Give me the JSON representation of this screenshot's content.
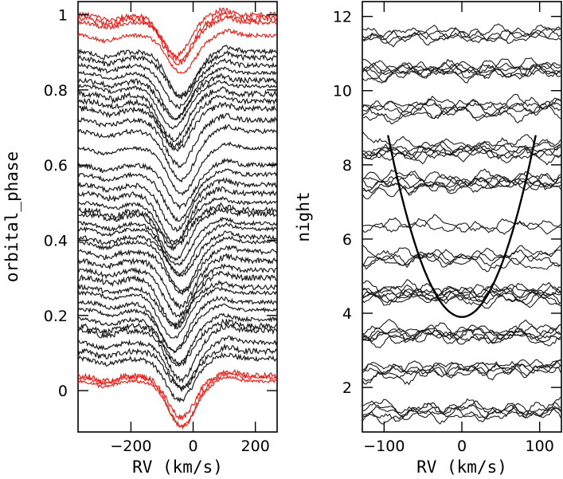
{
  "chart_data": [
    {
      "type": "line",
      "xlabel": "RV (km/s)",
      "ylabel": "orbital_phase",
      "xlim": [
        -370,
        270
      ],
      "ylim": [
        -0.11,
        1.035
      ],
      "xticks": [
        -200,
        0,
        200
      ],
      "xtick_labels": [
        "−200",
        "0",
        "200"
      ],
      "yticks": [
        0,
        0.2,
        0.4,
        0.6,
        0.8,
        1
      ],
      "ytick_labels": [
        "0",
        "0.2",
        "0.4",
        "0.6",
        "0.8",
        "1"
      ],
      "line_center_rv": -50,
      "line_halfwidth_rv": 120,
      "highlight_color": "#e8231d",
      "series_color": "#1a1a1a",
      "black_phases": [
        0.085,
        0.105,
        0.128,
        0.16,
        0.172,
        0.19,
        0.215,
        0.235,
        0.26,
        0.275,
        0.3,
        0.32,
        0.345,
        0.37,
        0.395,
        0.408,
        0.43,
        0.445,
        0.47,
        0.48,
        0.5,
        0.525,
        0.548,
        0.575,
        0.6,
        0.645,
        0.69,
        0.72,
        0.75,
        0.77,
        0.79,
        0.81,
        0.825,
        0.845,
        0.865,
        0.885,
        0.902
      ],
      "black_depths": [
        0.11,
        0.1,
        0.12,
        0.13,
        0.1,
        0.12,
        0.11,
        0.13,
        0.12,
        0.1,
        0.13,
        0.12,
        0.12,
        0.11,
        0.13,
        0.1,
        0.12,
        0.11,
        0.12,
        0.1,
        0.11,
        0.13,
        0.12,
        0.12,
        0.11,
        0.12,
        0.13,
        0.12,
        0.11,
        0.12,
        0.12,
        0.11,
        0.1,
        0.12,
        0.11,
        0.1,
        0.12
      ],
      "red_phases": [
        0.025,
        0.035,
        0.04,
        0.945,
        0.98,
        0.99,
        1.0
      ],
      "red_depths": [
        0.12,
        0.13,
        0.11,
        0.1,
        0.1,
        0.12,
        0.11
      ]
    },
    {
      "type": "line",
      "xlabel": "RV (km/s)",
      "ylabel": "night",
      "xlim": [
        -128,
        128
      ],
      "ylim": [
        0.8,
        12.4
      ],
      "xticks": [
        -100,
        0,
        100
      ],
      "xtick_labels": [
        "−100",
        "0",
        "100"
      ],
      "yticks": [
        2,
        4,
        6,
        8,
        10,
        12
      ],
      "ytick_labels": [
        "2",
        "4",
        "6",
        "8",
        "10",
        "12"
      ],
      "night_levels": [
        1.4,
        2.5,
        3.5,
        4.5,
        5.5,
        6.4,
        7.5,
        8.4,
        9.5,
        10.5,
        11.5
      ],
      "spectra_per_night": [
        5,
        5,
        6,
        7,
        4,
        2,
        6,
        6,
        5,
        6,
        4
      ],
      "parabola": {
        "vertex_x": 0,
        "vertex_y": 3.9,
        "edge_x": [
          -95,
          95
        ],
        "edge_y": 8.8
      },
      "series_color": "#1a1a1a"
    }
  ]
}
